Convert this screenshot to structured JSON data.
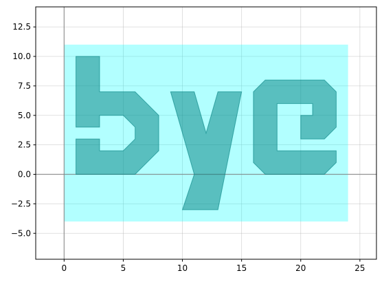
{
  "chart_data": {
    "type": "area",
    "title": "",
    "xlabel": "",
    "ylabel": "",
    "xlim": [
      -2.4,
      26.4
    ],
    "ylim": [
      -7.2,
      14.2
    ],
    "grid": true,
    "xticks": [
      0,
      5,
      10,
      15,
      20,
      25
    ],
    "xtick_labels": [
      "0",
      "5",
      "10",
      "15",
      "20",
      "25"
    ],
    "yticks": [
      -5.0,
      -2.5,
      0.0,
      2.5,
      5.0,
      7.5,
      10.0,
      12.5
    ],
    "ytick_labels": [
      "−5.0",
      "−2.5",
      "0.0",
      "2.5",
      "5.0",
      "7.5",
      "10.0",
      "12.5"
    ],
    "reference_lines": {
      "x": 0,
      "y": 0
    },
    "background_region": {
      "name": "background-rectangle",
      "x": [
        0,
        24
      ],
      "y": [
        -4,
        11
      ],
      "color": "#00ffff",
      "opacity": 0.3
    },
    "shapes": [
      {
        "name": "letter-b",
        "text": "b",
        "color": "#008080",
        "opacity": 0.5,
        "points": [
          [
            1,
            0
          ],
          [
            1,
            3
          ],
          [
            3,
            3
          ],
          [
            3,
            2
          ],
          [
            5,
            2
          ],
          [
            6,
            3
          ],
          [
            6,
            4
          ],
          [
            5,
            5
          ],
          [
            3,
            5
          ],
          [
            3,
            4
          ],
          [
            1,
            4
          ],
          [
            1,
            10
          ],
          [
            3,
            10
          ],
          [
            3,
            7
          ],
          [
            6,
            7
          ],
          [
            8,
            5
          ],
          [
            8,
            2
          ],
          [
            6,
            0
          ]
        ]
      },
      {
        "name": "letter-y",
        "text": "y",
        "color": "#008080",
        "opacity": 0.5,
        "points": [
          [
            9,
            7
          ],
          [
            11,
            7
          ],
          [
            12,
            3.5
          ],
          [
            13,
            7
          ],
          [
            15,
            7
          ],
          [
            13,
            -3
          ],
          [
            10,
            -3
          ],
          [
            11,
            0
          ]
        ]
      },
      {
        "name": "letter-e",
        "text": "e",
        "color": "#008080",
        "opacity": 0.5,
        "points": [
          [
            16,
            7
          ],
          [
            17,
            8
          ],
          [
            22,
            8
          ],
          [
            23,
            7
          ],
          [
            23,
            4
          ],
          [
            22,
            3
          ],
          [
            20,
            3
          ],
          [
            20,
            5
          ],
          [
            21,
            5
          ],
          [
            21,
            6
          ],
          [
            18,
            6
          ],
          [
            18,
            2
          ],
          [
            23,
            2
          ],
          [
            23,
            1
          ],
          [
            22,
            0
          ],
          [
            17,
            0
          ],
          [
            16,
            1
          ]
        ]
      }
    ]
  }
}
